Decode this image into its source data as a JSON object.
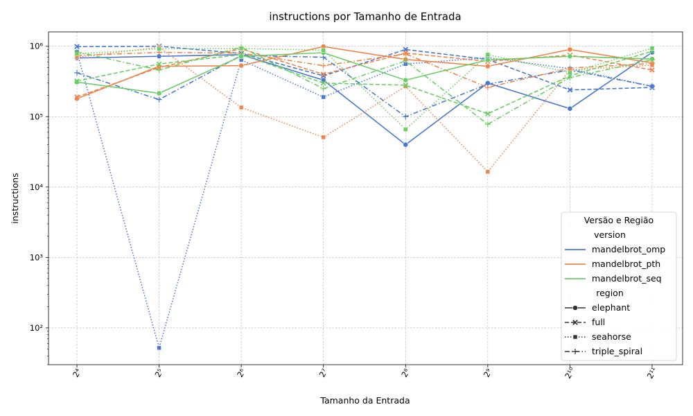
{
  "chart_data": {
    "type": "line",
    "title": "instructions por Tamanho de Entrada",
    "xlabel": "Tamanho da Entrada",
    "ylabel": "instructions",
    "yscale": "log",
    "ylim": [
      30,
      1600000
    ],
    "grid": true,
    "legend_position": "bottom-right",
    "legend_title": "Versão e Região",
    "legend_group_version": "version",
    "legend_group_region": "region",
    "x": [
      "2^4",
      "2^5",
      "2^6",
      "2^7",
      "2^8",
      "2^9",
      "2^10",
      "2^11"
    ],
    "x_tick_labels": [
      "2⁴",
      "2⁵",
      "2⁶",
      "2⁷",
      "2⁸",
      "2⁹",
      "2¹⁰",
      "2¹¹"
    ],
    "y_ticks": [
      {
        "value": 100,
        "label": "10²"
      },
      {
        "value": 1000,
        "label": "10³"
      },
      {
        "value": 10000,
        "label": "10⁴"
      },
      {
        "value": 100000,
        "label": "10⁵"
      },
      {
        "value": 1000000,
        "label": "10⁶"
      }
    ],
    "versions": [
      {
        "name": "mandelbrot_omp",
        "color": "#4878d0"
      },
      {
        "name": "mandelbrot_pth",
        "color": "#ee854a"
      },
      {
        "name": "mandelbrot_seq",
        "color": "#6acc64"
      }
    ],
    "regions": [
      {
        "name": "elephant",
        "dash": "solid",
        "marker": "circle"
      },
      {
        "name": "full",
        "dash": "dashed",
        "marker": "x"
      },
      {
        "name": "seahorse",
        "dash": "dotted",
        "marker": "square"
      },
      {
        "name": "triple_spiral",
        "dash": "dashdot",
        "marker": "plus"
      }
    ],
    "series": [
      {
        "version": "mandelbrot_omp",
        "region": "elephant",
        "values": [
          680000,
          720000,
          760000,
          330000,
          40000,
          300000,
          130000,
          820000
        ]
      },
      {
        "version": "mandelbrot_omp",
        "region": "full",
        "values": [
          990000,
          1000000,
          790000,
          380000,
          900000,
          650000,
          240000,
          260000
        ]
      },
      {
        "version": "mandelbrot_omp",
        "region": "seahorse",
        "values": [
          830000,
          52,
          640000,
          190000,
          560000,
          690000,
          480000,
          270000
        ]
      },
      {
        "version": "mandelbrot_omp",
        "region": "triple_spiral",
        "values": [
          420000,
          175000,
          740000,
          700000,
          100000,
          290000,
          460000,
          270000
        ]
      },
      {
        "version": "mandelbrot_pth",
        "region": "elephant",
        "values": [
          180000,
          520000,
          530000,
          990000,
          650000,
          520000,
          900000,
          580000
        ]
      },
      {
        "version": "mandelbrot_pth",
        "region": "full",
        "values": [
          190000,
          500000,
          920000,
          400000,
          800000,
          610000,
          750000,
          460000
        ]
      },
      {
        "version": "mandelbrot_pth",
        "region": "seahorse",
        "values": [
          700000,
          970000,
          135000,
          51000,
          270000,
          16500,
          460000,
          540000
        ]
      },
      {
        "version": "mandelbrot_pth",
        "region": "triple_spiral",
        "values": [
          740000,
          820000,
          800000,
          530000,
          780000,
          260000,
          490000,
          570000
        ]
      },
      {
        "version": "mandelbrot_seq",
        "region": "elephant",
        "values": [
          310000,
          215000,
          720000,
          810000,
          330000,
          640000,
          720000,
          660000
        ]
      },
      {
        "version": "mandelbrot_seq",
        "region": "full",
        "values": [
          320000,
          560000,
          760000,
          300000,
          280000,
          110000,
          380000,
          850000
        ]
      },
      {
        "version": "mandelbrot_seq",
        "region": "seahorse",
        "values": [
          780000,
          920000,
          930000,
          880000,
          66000,
          760000,
          420000,
          940000
        ]
      },
      {
        "version": "mandelbrot_seq",
        "region": "triple_spiral",
        "values": [
          830000,
          460000,
          970000,
          250000,
          620000,
          78000,
          360000,
          640000
        ]
      }
    ]
  }
}
